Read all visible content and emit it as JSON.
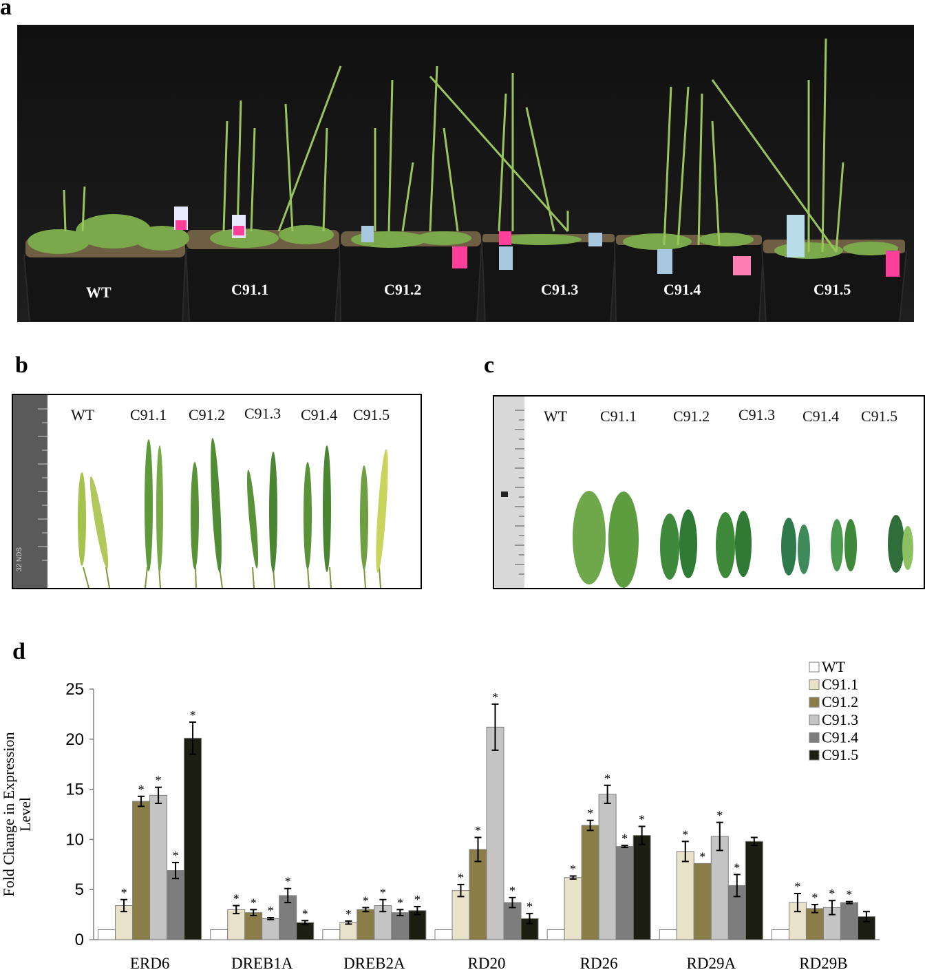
{
  "panel_labels": {
    "a": "a",
    "b": "b",
    "c": "c",
    "d": "d"
  },
  "panel_a": {
    "pot_labels": [
      "WT",
      "C91.1",
      "C91.2",
      "C91.3",
      "C91.4",
      "C91.5"
    ]
  },
  "panel_b": {
    "labels": [
      "WT",
      "C91.1",
      "C91.2",
      "C91.3",
      "C91.4",
      "C91.5"
    ],
    "ruler_text": "32 NDS"
  },
  "panel_c": {
    "labels": [
      "WT",
      "C91.1",
      "C91.2",
      "C91.3",
      "C91.4",
      "C91.5"
    ]
  },
  "colors": {
    "WT": "#ffffff",
    "C91.1": "#e8e2c8",
    "C91.2": "#8b7d47",
    "C91.3": "#c4c4c4",
    "C91.4": "#7d7d7d",
    "C91.5": "#1c1e12"
  },
  "chart_data": {
    "type": "bar",
    "categories": [
      "ERD6",
      "DREB1A",
      "DREB2A",
      "RD20",
      "RD26",
      "RD29A",
      "RD29B"
    ],
    "ylabel": "Fold Change in Expression Level",
    "ylim": [
      0,
      25
    ],
    "yticks": [
      0,
      5,
      10,
      15,
      20,
      25
    ],
    "legend_position": "top-right",
    "series": [
      {
        "name": "WT",
        "values": [
          1,
          1,
          1,
          1,
          1,
          1,
          1
        ],
        "errors": [
          0,
          0,
          0,
          0,
          0,
          0,
          0
        ],
        "sig": [
          false,
          false,
          false,
          false,
          false,
          false,
          false
        ]
      },
      {
        "name": "C91.1",
        "values": [
          3.4,
          3.0,
          1.7,
          4.9,
          6.2,
          8.8,
          3.7
        ],
        "errors": [
          0.6,
          0.4,
          0.15,
          0.6,
          0.15,
          1.0,
          0.9
        ],
        "sig": [
          true,
          true,
          true,
          true,
          true,
          true,
          true
        ]
      },
      {
        "name": "C91.2",
        "values": [
          13.8,
          2.7,
          3.0,
          9.0,
          11.4,
          7.6,
          3.1
        ],
        "errors": [
          0.5,
          0.3,
          0.2,
          1.2,
          0.5,
          0,
          0.4
        ],
        "sig": [
          true,
          true,
          true,
          true,
          true,
          true,
          true
        ]
      },
      {
        "name": "C91.3",
        "values": [
          14.4,
          2.1,
          3.4,
          21.2,
          14.5,
          10.3,
          3.2
        ],
        "errors": [
          0.8,
          0.1,
          0.6,
          2.3,
          0.9,
          1.4,
          0.7
        ],
        "sig": [
          true,
          true,
          true,
          true,
          true,
          true,
          true
        ]
      },
      {
        "name": "C91.4",
        "values": [
          6.9,
          4.4,
          2.7,
          3.7,
          9.3,
          5.4,
          3.7
        ],
        "errors": [
          0.8,
          0.7,
          0.3,
          0.5,
          0.1,
          1.1,
          0.1
        ],
        "sig": [
          true,
          true,
          true,
          true,
          true,
          true,
          true
        ]
      },
      {
        "name": "C91.5",
        "values": [
          20.1,
          1.7,
          2.9,
          2.1,
          10.4,
          9.8,
          2.3
        ],
        "errors": [
          1.6,
          0.2,
          0.4,
          0.5,
          0.9,
          0.4,
          0.5
        ],
        "sig": [
          true,
          true,
          true,
          true,
          true,
          false,
          false
        ]
      }
    ],
    "sig_marker": "*"
  }
}
